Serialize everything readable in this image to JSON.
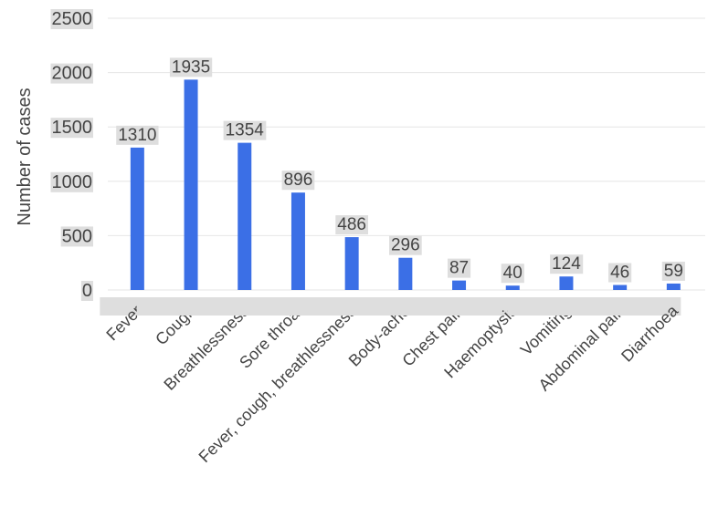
{
  "chart_data": {
    "type": "bar",
    "title": "",
    "xlabel": "",
    "ylabel": "Number of cases",
    "ylim": [
      0,
      2500
    ],
    "yticks": [
      0,
      500,
      1000,
      1500,
      2000,
      2500
    ],
    "grid": true,
    "legend": "none",
    "categories": [
      "Fever",
      "Cough",
      "Breathlessness",
      "Sore throat",
      "Fever, cough, breathlessness",
      "Body-ache",
      "Chest pain",
      "Haemoptysis",
      "Vomiting",
      "Abdominal pain",
      "Diarrhoea"
    ],
    "values": [
      1310,
      1935,
      1354,
      896,
      486,
      296,
      87,
      40,
      124,
      46,
      59
    ],
    "colors": {
      "bar": "#3b6fe6",
      "grid": "#e6e6e6",
      "text": "#444444",
      "label_bg": "#dedede"
    }
  }
}
